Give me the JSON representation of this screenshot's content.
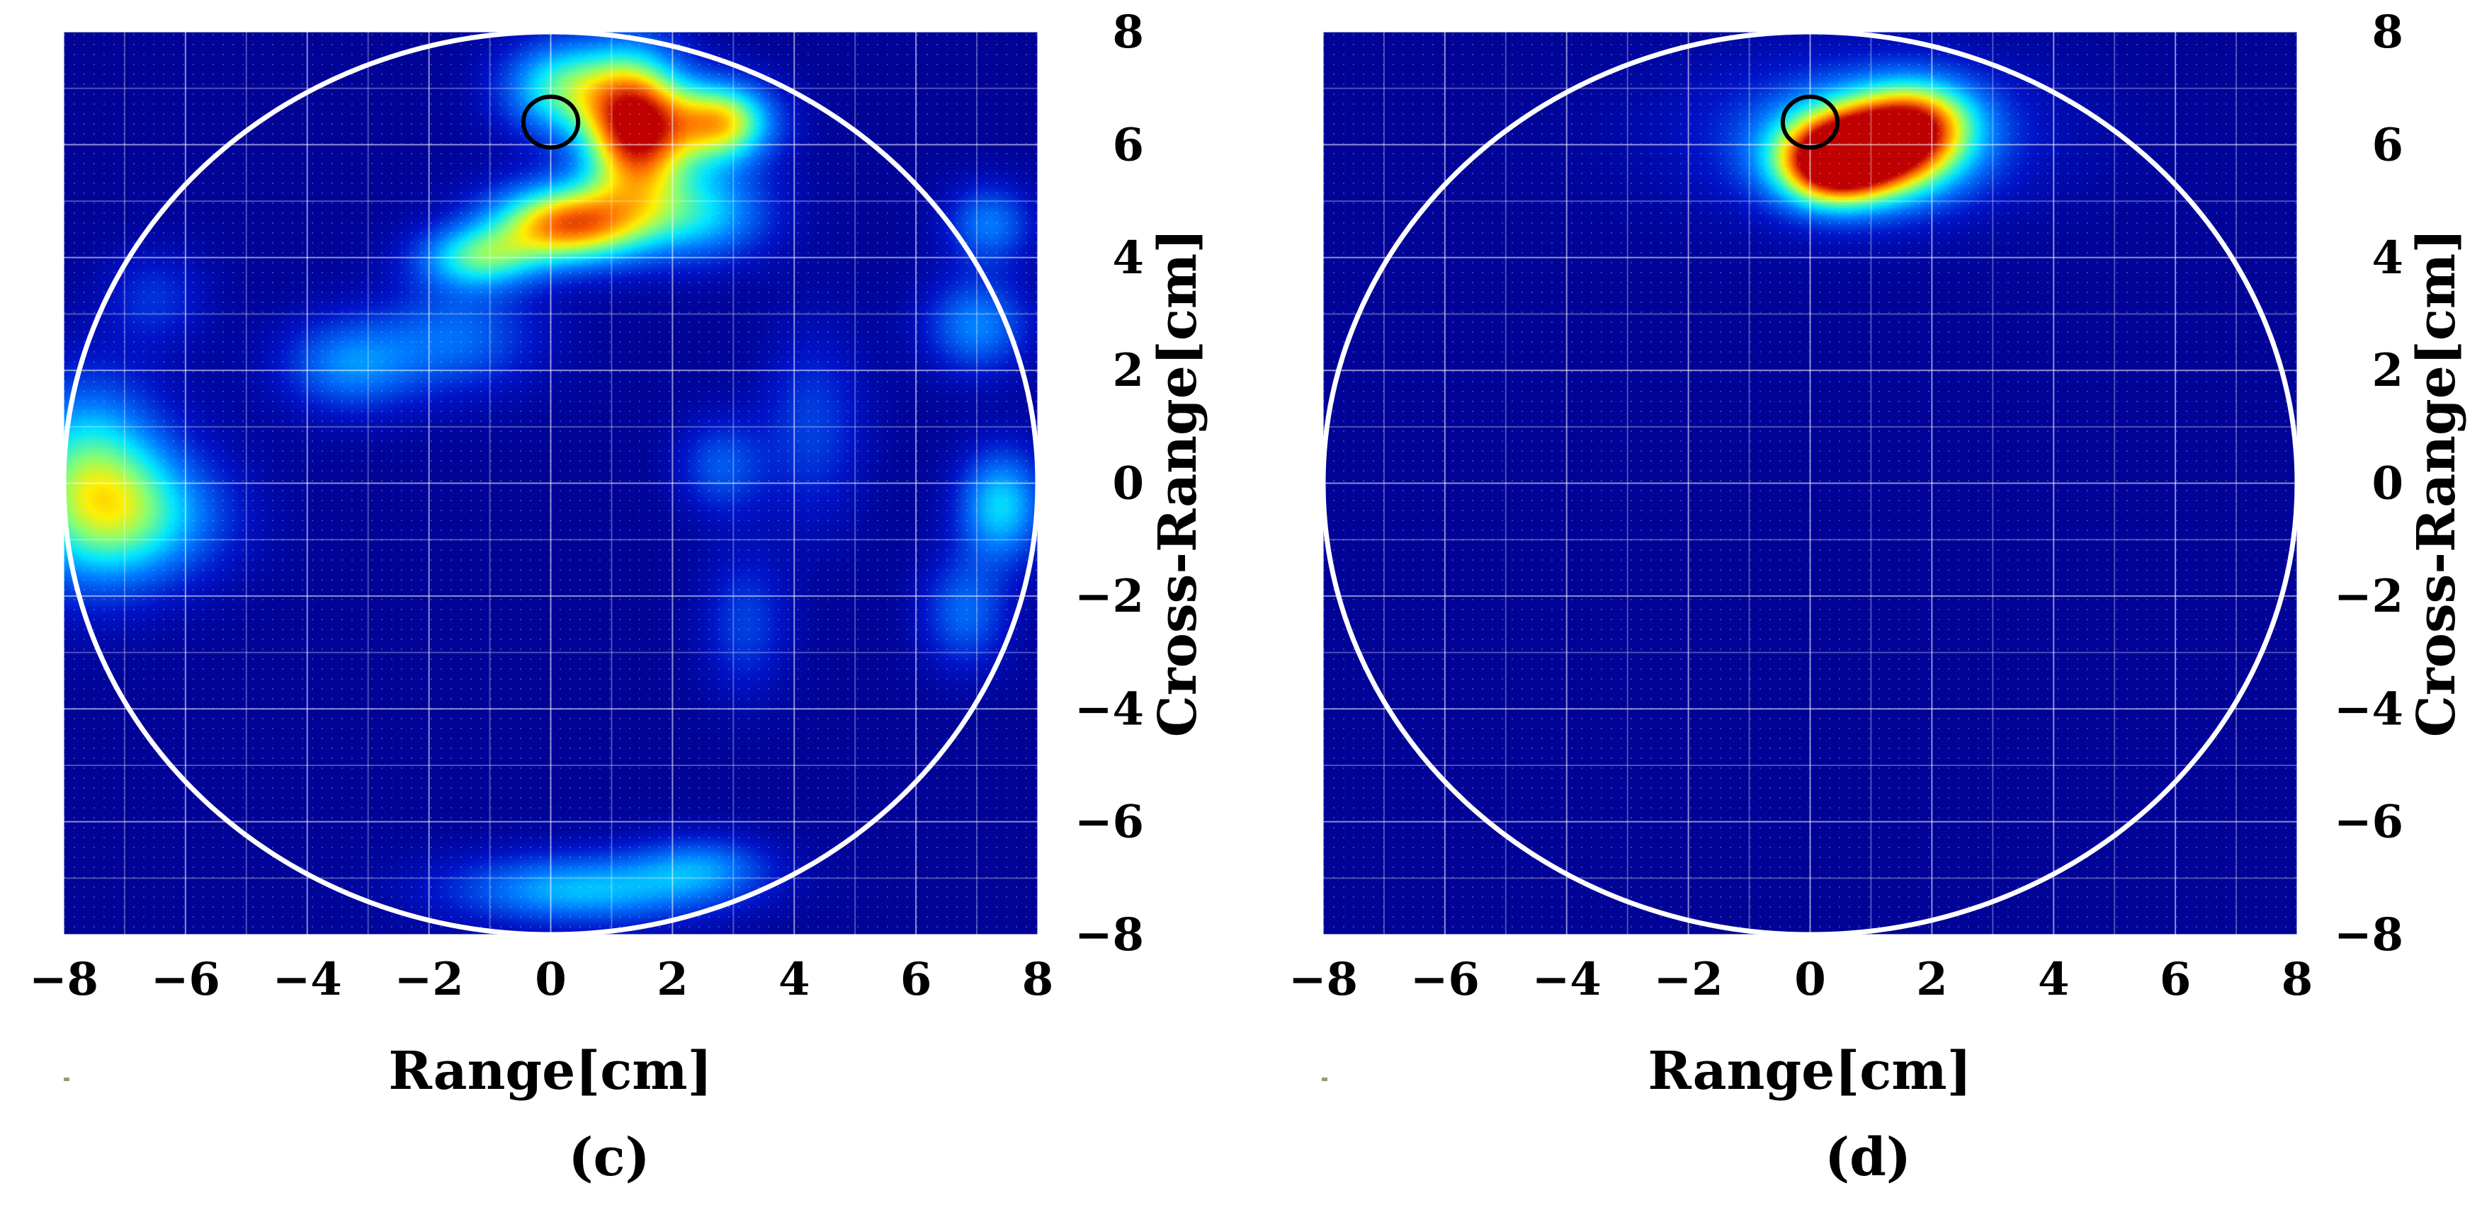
{
  "chart_data": [
    {
      "type": "heatmap",
      "panel_label": "(c)",
      "xlabel": "Range[cm]",
      "ylabel": "Cross-Range[cm]",
      "xlim": [
        -8,
        8
      ],
      "ylim": [
        -8,
        8
      ],
      "xticks": [
        -8,
        -6,
        -4,
        -2,
        0,
        2,
        4,
        6,
        8
      ],
      "yticks": [
        8,
        6,
        4,
        2,
        0,
        -2,
        -4,
        -6,
        -8
      ],
      "x_tick_labels": [
        "−8",
        "−6",
        "−4",
        "−2",
        "0",
        "2",
        "4",
        "6",
        "8"
      ],
      "y_tick_labels": [
        "8",
        "6",
        "4",
        "2",
        "0",
        "−2",
        "−4",
        "−6",
        "−8"
      ],
      "grid": true,
      "colormap": "jet",
      "boundary_circle": {
        "center": [
          0,
          0
        ],
        "radius": 8,
        "color": "#ffffff"
      },
      "target_marker": {
        "center": [
          0,
          6.4
        ],
        "radius": 0.45,
        "color": "#000000"
      },
      "intensity_blobs": [
        {
          "x": 1.4,
          "y": 6.3,
          "sx": 0.6,
          "sy": 0.9,
          "amp": 1.0
        },
        {
          "x": 0.3,
          "y": 4.6,
          "sx": 0.9,
          "sy": 0.5,
          "amp": 0.85
        },
        {
          "x": 2.8,
          "y": 6.4,
          "sx": 0.6,
          "sy": 0.5,
          "amp": 0.72
        },
        {
          "x": 0.2,
          "y": 7.0,
          "sx": 0.7,
          "sy": 0.6,
          "amp": 0.5
        },
        {
          "x": -1.2,
          "y": 4.0,
          "sx": 0.7,
          "sy": 0.4,
          "amp": 0.45
        },
        {
          "x": 2.5,
          "y": 4.8,
          "sx": 0.8,
          "sy": 0.6,
          "amp": 0.38
        },
        {
          "x": -3.3,
          "y": 2.1,
          "sx": 0.8,
          "sy": 0.6,
          "amp": 0.3
        },
        {
          "x": -1.5,
          "y": 2.6,
          "sx": 0.9,
          "sy": 0.7,
          "amp": 0.25
        },
        {
          "x": -7.6,
          "y": 0.0,
          "sx": 0.9,
          "sy": 1.2,
          "amp": 0.55
        },
        {
          "x": -6.6,
          "y": -0.6,
          "sx": 1.0,
          "sy": 0.8,
          "amp": 0.32
        },
        {
          "x": 7.4,
          "y": -0.4,
          "sx": 0.5,
          "sy": 0.7,
          "amp": 0.42
        },
        {
          "x": 7.0,
          "y": 2.8,
          "sx": 0.6,
          "sy": 0.6,
          "amp": 0.3
        },
        {
          "x": 7.2,
          "y": 4.6,
          "sx": 0.5,
          "sy": 0.5,
          "amp": 0.28
        },
        {
          "x": 6.8,
          "y": -2.3,
          "sx": 0.5,
          "sy": 0.7,
          "amp": 0.25
        },
        {
          "x": 0.5,
          "y": -7.2,
          "sx": 1.5,
          "sy": 0.45,
          "amp": 0.38
        },
        {
          "x": 2.5,
          "y": -6.8,
          "sx": 0.8,
          "sy": 0.4,
          "amp": 0.25
        },
        {
          "x": 2.8,
          "y": 0.3,
          "sx": 0.5,
          "sy": 0.6,
          "amp": 0.22
        },
        {
          "x": 4.3,
          "y": 1.0,
          "sx": 0.6,
          "sy": 1.2,
          "amp": 0.18
        },
        {
          "x": 3.2,
          "y": -2.5,
          "sx": 0.5,
          "sy": 0.9,
          "amp": 0.18
        },
        {
          "x": -6.5,
          "y": 3.3,
          "sx": 0.6,
          "sy": 0.6,
          "amp": 0.15
        }
      ]
    },
    {
      "type": "heatmap",
      "panel_label": "(d)",
      "xlabel": "Range[cm]",
      "ylabel": "Cross-Range[cm]",
      "xlim": [
        -8,
        8
      ],
      "ylim": [
        -8,
        8
      ],
      "xticks": [
        -8,
        -6,
        -4,
        -2,
        0,
        2,
        4,
        6,
        8
      ],
      "yticks": [
        8,
        6,
        4,
        2,
        0,
        -2,
        -4,
        -6,
        -8
      ],
      "x_tick_labels": [
        "−8",
        "−6",
        "−4",
        "−2",
        "0",
        "2",
        "4",
        "6",
        "8"
      ],
      "y_tick_labels": [
        "8",
        "6",
        "4",
        "2",
        "0",
        "−2",
        "−4",
        "−6",
        "−8"
      ],
      "grid": true,
      "colormap": "jet",
      "boundary_circle": {
        "center": [
          0,
          0
        ],
        "radius": 8,
        "color": "#ffffff"
      },
      "target_marker": {
        "center": [
          0,
          6.4
        ],
        "radius": 0.45,
        "color": "#000000"
      },
      "intensity_blobs": [
        {
          "x": 1.0,
          "y": 5.9,
          "sx": 0.95,
          "sy": 0.6,
          "amp": 1.0
        },
        {
          "x": 0.3,
          "y": 5.6,
          "sx": 0.6,
          "sy": 0.5,
          "amp": 0.55
        },
        {
          "x": 1.8,
          "y": 6.5,
          "sx": 0.7,
          "sy": 0.5,
          "amp": 0.45
        },
        {
          "x": 0.8,
          "y": 6.2,
          "sx": 2.0,
          "sy": 1.0,
          "amp": 0.22
        }
      ]
    }
  ]
}
